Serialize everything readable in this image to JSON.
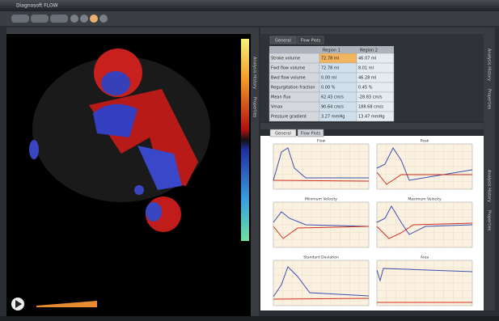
{
  "window": {
    "title": "Diagnosoft FLOW"
  },
  "top_panel": {
    "tabs": [
      "General",
      "Flow Plots"
    ],
    "table": {
      "header": [
        "Region 1",
        "Region 2"
      ],
      "rows": [
        [
          "Stroke volume",
          "72.78 ml",
          "46.07 ml"
        ],
        [
          "Fwd flow volume",
          "72.78 ml",
          "8.01 ml"
        ],
        [
          "Bwd flow volume",
          "0.00 ml",
          "46.28 ml"
        ],
        [
          "Regurgitation fraction",
          "0.00 %",
          "0.45 %"
        ],
        [
          "Mean flux",
          "62.43 cm/s",
          "-28.83 cm/s"
        ],
        [
          "Vmax",
          "90.64 cm/s",
          "188.68 cm/s"
        ],
        [
          "Pressure gradient",
          "3.27 mmHg",
          "13.47 mmHg"
        ]
      ]
    }
  },
  "bottom_panel": {
    "tabs": [
      "General",
      "Flow Plots"
    ],
    "plots": [
      {
        "title": "Flow"
      },
      {
        "title": "Peak"
      },
      {
        "title": "Minimum Velocity"
      },
      {
        "title": "Maximum Velocity"
      },
      {
        "title": "Standard Deviation"
      },
      {
        "title": "Area"
      }
    ]
  },
  "side_tabs": [
    "Analysis History",
    "Properties"
  ]
}
